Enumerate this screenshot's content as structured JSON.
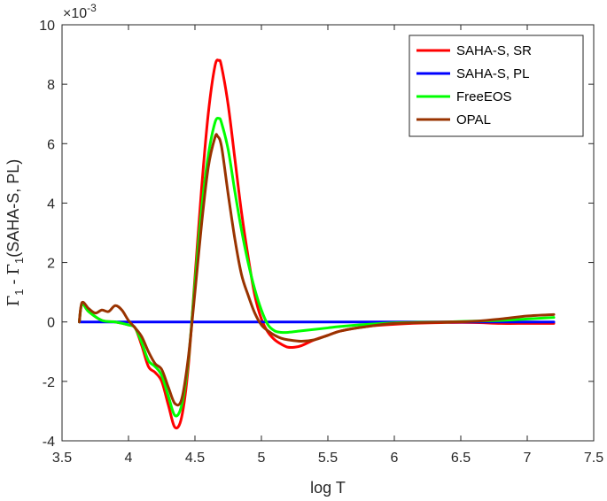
{
  "chart_data": {
    "type": "line",
    "xlabel": "log T",
    "ylabel": "Γ₁ - Γ₁(SAHA-S, PL)",
    "ylabel_parts": {
      "gamma": "Γ",
      "sub1": "1",
      "minus": " - ",
      "gamma2": "Γ",
      "sub2": "1",
      "rest": "(SAHA-S, PL)"
    },
    "y_multiplier": {
      "base": "×10",
      "exponent": "-3"
    },
    "xlim": [
      3.5,
      7.5
    ],
    "ylim": [
      -4,
      10
    ],
    "xticks": [
      "3.5",
      "4",
      "4.5",
      "5",
      "5.5",
      "6",
      "6.5",
      "7",
      "7.5"
    ],
    "yticks": [
      "-4",
      "-2",
      "0",
      "2",
      "4",
      "6",
      "8",
      "10"
    ],
    "grid": false,
    "legend_position": "top-right",
    "series": [
      {
        "name": "SAHA-S, SR",
        "color": "#ff0000",
        "x": [
          3.63,
          3.65,
          3.7,
          3.8,
          3.9,
          4.0,
          4.05,
          4.1,
          4.15,
          4.2,
          4.25,
          4.3,
          4.35,
          4.4,
          4.45,
          4.5,
          4.55,
          4.6,
          4.65,
          4.68,
          4.7,
          4.75,
          4.8,
          4.85,
          4.9,
          4.95,
          5.0,
          5.05,
          5.1,
          5.15,
          5.2,
          5.25,
          5.3,
          5.4,
          5.5,
          5.6,
          5.8,
          6.0,
          6.2,
          6.4,
          6.6,
          6.8,
          7.0,
          7.2
        ],
        "y": [
          0.0,
          0.6,
          0.35,
          0.05,
          0.0,
          -0.1,
          -0.2,
          -0.8,
          -1.5,
          -1.7,
          -2.0,
          -2.8,
          -3.55,
          -3.2,
          -1.5,
          1.5,
          4.5,
          7.0,
          8.6,
          8.8,
          8.6,
          7.3,
          5.5,
          3.7,
          2.2,
          0.9,
          0.1,
          -0.35,
          -0.6,
          -0.75,
          -0.85,
          -0.85,
          -0.8,
          -0.6,
          -0.45,
          -0.3,
          -0.15,
          -0.08,
          -0.04,
          -0.02,
          -0.02,
          -0.05,
          -0.05,
          -0.05
        ]
      },
      {
        "name": "SAHA-S, PL",
        "color": "#0000ff",
        "x": [
          3.63,
          7.2
        ],
        "y": [
          0.0,
          0.0
        ]
      },
      {
        "name": "FreeEOS",
        "color": "#00ff00",
        "x": [
          3.63,
          3.65,
          3.7,
          3.8,
          3.9,
          4.0,
          4.05,
          4.1,
          4.15,
          4.2,
          4.25,
          4.3,
          4.35,
          4.4,
          4.45,
          4.5,
          4.55,
          4.6,
          4.65,
          4.68,
          4.7,
          4.75,
          4.8,
          4.85,
          4.9,
          4.95,
          5.0,
          5.05,
          5.1,
          5.15,
          5.2,
          5.3,
          5.4,
          5.5,
          5.6,
          5.8,
          6.0,
          6.2,
          6.4,
          6.6,
          6.8,
          7.0,
          7.2
        ],
        "y": [
          0.0,
          0.6,
          0.35,
          0.05,
          0.0,
          -0.1,
          -0.2,
          -0.7,
          -1.3,
          -1.5,
          -1.8,
          -2.5,
          -3.15,
          -2.8,
          -1.3,
          1.3,
          3.8,
          5.6,
          6.7,
          6.85,
          6.7,
          5.8,
          4.4,
          3.1,
          2.0,
          1.1,
          0.4,
          -0.1,
          -0.3,
          -0.35,
          -0.35,
          -0.3,
          -0.25,
          -0.2,
          -0.15,
          -0.08,
          -0.03,
          -0.01,
          0.0,
          0.03,
          0.05,
          0.1,
          0.15
        ]
      },
      {
        "name": "OPAL",
        "color": "#993300",
        "x": [
          3.63,
          3.65,
          3.7,
          3.75,
          3.8,
          3.85,
          3.9,
          3.95,
          4.0,
          4.05,
          4.1,
          4.15,
          4.2,
          4.25,
          4.3,
          4.35,
          4.4,
          4.45,
          4.5,
          4.55,
          4.6,
          4.65,
          4.67,
          4.7,
          4.75,
          4.8,
          4.85,
          4.9,
          4.95,
          5.0,
          5.05,
          5.1,
          5.15,
          5.2,
          5.3,
          5.4,
          5.5,
          5.6,
          5.8,
          6.0,
          6.2,
          6.4,
          6.6,
          6.8,
          7.0,
          7.2
        ],
        "y": [
          0.0,
          0.65,
          0.45,
          0.3,
          0.4,
          0.35,
          0.55,
          0.4,
          0.05,
          -0.2,
          -0.5,
          -1.0,
          -1.4,
          -1.6,
          -2.2,
          -2.75,
          -2.6,
          -1.2,
          1.0,
          3.3,
          5.2,
          6.2,
          6.25,
          5.9,
          4.3,
          2.8,
          1.6,
          0.9,
          0.3,
          -0.1,
          -0.3,
          -0.45,
          -0.55,
          -0.6,
          -0.65,
          -0.6,
          -0.45,
          -0.3,
          -0.15,
          -0.05,
          -0.02,
          0.0,
          0.02,
          0.1,
          0.2,
          0.25
        ]
      }
    ]
  }
}
